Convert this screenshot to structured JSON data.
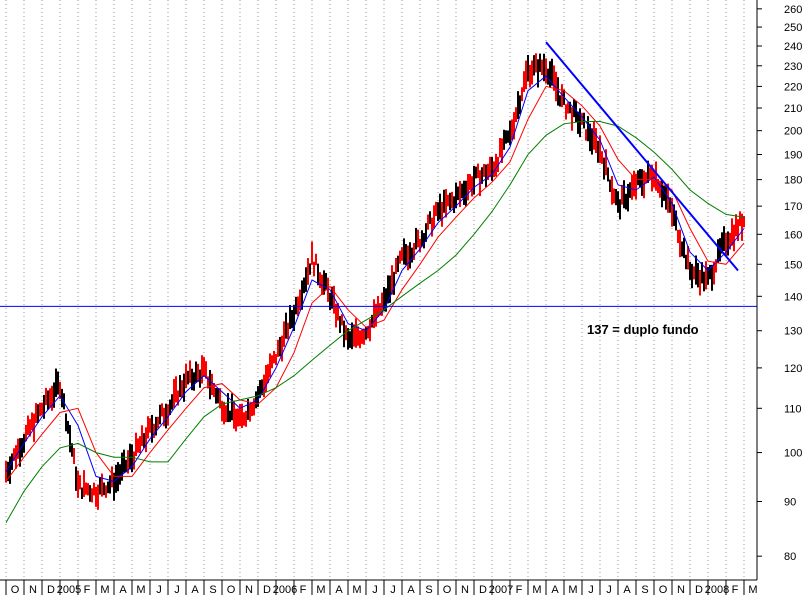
{
  "chart_data": {
    "type": "candlestick",
    "scale": "log",
    "ylim": [
      76,
      265
    ],
    "yticks": [
      80,
      90,
      100,
      110,
      120,
      130,
      140,
      150,
      160,
      170,
      180,
      190,
      200,
      210,
      220,
      230,
      240,
      250,
      260
    ],
    "xlabels": [
      "O",
      "N",
      "D",
      "2005",
      "F",
      "M",
      "A",
      "M",
      "J",
      "J",
      "A",
      "S",
      "O",
      "N",
      "D",
      "2006",
      "F",
      "M",
      "A",
      "M",
      "J",
      "J",
      "A",
      "S",
      "O",
      "N",
      "D",
      "2007",
      "F",
      "M",
      "A",
      "M",
      "J",
      "J",
      "A",
      "S",
      "O",
      "N",
      "D",
      "2008",
      "F",
      "M"
    ],
    "grid": "vertical dotted",
    "price_path": [
      [
        "O",
        96
      ],
      [
        "N",
        103
      ],
      [
        "D",
        110
      ],
      [
        "2005",
        116
      ],
      [
        "F",
        93
      ],
      [
        "M",
        92
      ],
      [
        "A",
        94
      ],
      [
        "M",
        99
      ],
      [
        "J",
        105
      ],
      [
        "J",
        110
      ],
      [
        "A",
        117
      ],
      [
        "S",
        119
      ],
      [
        "O",
        111
      ],
      [
        "N",
        107
      ],
      [
        "D",
        113
      ],
      [
        "2006",
        123
      ],
      [
        "F",
        135
      ],
      [
        "M",
        152
      ],
      [
        "A",
        140
      ],
      [
        "M",
        127
      ],
      [
        "J",
        130
      ],
      [
        "J",
        138
      ],
      [
        "A",
        152
      ],
      [
        "S",
        158
      ],
      [
        "O",
        168
      ],
      [
        "N",
        173
      ],
      [
        "D",
        180
      ],
      [
        "2007",
        184
      ],
      [
        "F",
        198
      ],
      [
        "M",
        228
      ],
      [
        "A",
        230
      ],
      [
        "M",
        212
      ],
      [
        "J",
        203
      ],
      [
        "J",
        192
      ],
      [
        "A",
        170
      ],
      [
        "S",
        178
      ],
      [
        "O",
        183
      ],
      [
        "N",
        168
      ],
      [
        "D",
        148
      ],
      [
        "2008",
        145
      ],
      [
        "F",
        158
      ],
      [
        "M",
        165
      ]
    ],
    "series": [
      {
        "color": "#0000ff",
        "values": [
          96,
          102,
          108,
          113,
          106,
          95,
          94,
          97,
          103,
          108,
          114,
          118,
          114,
          110,
          112,
          120,
          131,
          145,
          142,
          132,
          130,
          136,
          148,
          155,
          164,
          170,
          177,
          182,
          193,
          218,
          225,
          215,
          206,
          196,
          178,
          176,
          181,
          171,
          154,
          148,
          154,
          162
        ]
      },
      {
        "color": "#ff0000",
        "values": [
          94,
          99,
          104,
          109,
          110,
          100,
          95,
          95,
          100,
          105,
          110,
          115,
          116,
          112,
          111,
          115,
          124,
          138,
          143,
          136,
          131,
          133,
          142,
          150,
          159,
          166,
          173,
          179,
          187,
          205,
          220,
          218,
          211,
          202,
          188,
          180,
          180,
          176,
          162,
          151,
          150,
          157
        ]
      },
      {
        "color": "#008000",
        "values": [
          86,
          92,
          97,
          101,
          102,
          100,
          99,
          99,
          98,
          98,
          103,
          108,
          111,
          112,
          113,
          115,
          118,
          122,
          126,
          130,
          133,
          136,
          140,
          144,
          148,
          153,
          160,
          168,
          178,
          190,
          198,
          203,
          204,
          204,
          202,
          197,
          191,
          184,
          176,
          171,
          167,
          166
        ]
      }
    ],
    "trendline": {
      "color": "#0000ff",
      "from": [
        "A",
        242
      ],
      "to": [
        "M",
        148
      ]
    },
    "hline": {
      "value": 137,
      "color": "#0000ff"
    },
    "annotation": {
      "text": "137 = duplo fundo"
    }
  }
}
